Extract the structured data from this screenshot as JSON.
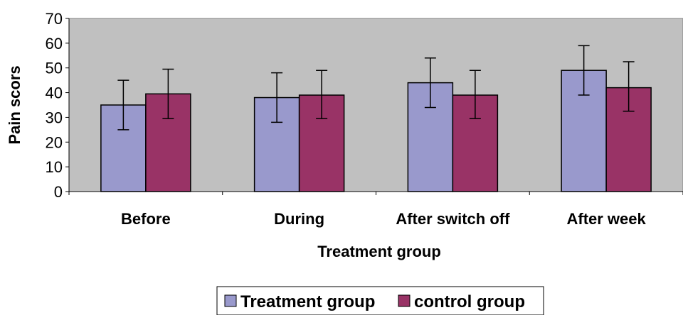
{
  "chart_data": {
    "type": "bar",
    "categories": [
      "Before",
      "During",
      "After switch off",
      "After week"
    ],
    "series": [
      {
        "name": "Treatment group",
        "values": [
          35,
          38,
          44,
          49
        ],
        "error_low": [
          25,
          28,
          34,
          39
        ],
        "error_high": [
          45,
          48,
          54,
          59
        ],
        "color": "#9999cc"
      },
      {
        "name": "control group",
        "values": [
          39.5,
          39,
          39,
          42
        ],
        "error_low": [
          29.5,
          29.5,
          29.5,
          32.5
        ],
        "error_high": [
          49.5,
          49,
          49,
          52.5
        ],
        "color": "#993366"
      }
    ],
    "xlabel": "Treatment group",
    "ylabel": "Pain  scors",
    "ylim": [
      0,
      70
    ],
    "yticks": [
      0,
      10,
      20,
      30,
      40,
      50,
      60,
      70
    ],
    "grid": false,
    "plot_background": "#c0c0c0",
    "legend_position": "bottom"
  }
}
